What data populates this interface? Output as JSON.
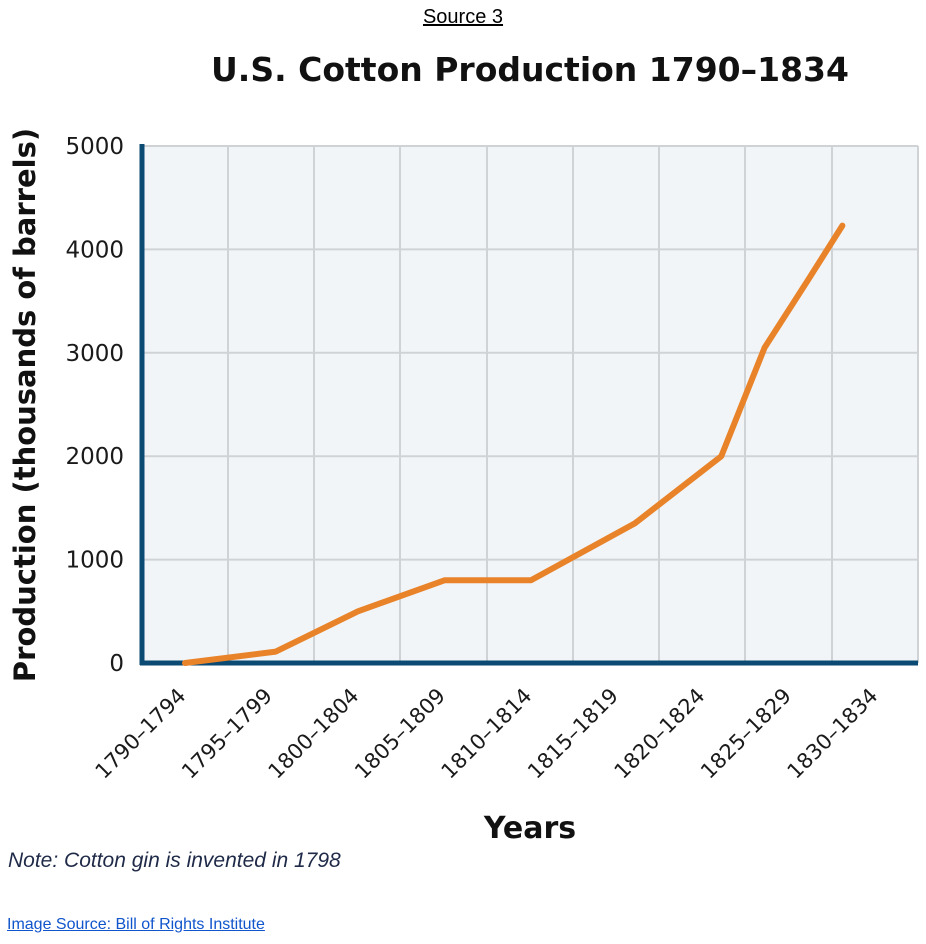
{
  "header": {
    "source_label": "Source 3"
  },
  "chart_data": {
    "type": "line",
    "title": "U.S. Cotton Production 1790–1834",
    "xlabel": "Years",
    "ylabel": "Production (thousands of barrels)",
    "categories": [
      "1790–1794",
      "1795–1799",
      "1800–1804",
      "1805–1809",
      "1810–1814",
      "1815–1819",
      "1820–1824",
      "1825–1829",
      "1830–1834"
    ],
    "y_ticks": [
      0,
      1000,
      2000,
      3000,
      4000,
      5000
    ],
    "ylim": [
      0,
      5000
    ],
    "grid": true,
    "series": [
      {
        "name": "Cotton production",
        "color": "#e8832a",
        "points": [
          {
            "x": 0,
            "y": 0
          },
          {
            "x": 1.05,
            "y": 110
          },
          {
            "x": 2,
            "y": 500
          },
          {
            "x": 3,
            "y": 800
          },
          {
            "x": 4,
            "y": 800
          },
          {
            "x": 5.2,
            "y": 1350
          },
          {
            "x": 6.2,
            "y": 2000
          },
          {
            "x": 6.7,
            "y": 3050
          },
          {
            "x": 7.2,
            "y": 3700
          },
          {
            "x": 7.6,
            "y": 4230
          }
        ]
      }
    ]
  },
  "colors": {
    "axis": "#0b4a72",
    "grid": "#d0d3d6",
    "plot_bg": "#f2f5f8"
  },
  "footer": {
    "note": "Note: Cotton gin is invented in 1798",
    "image_source": "Image Source: Bill of Rights Institute"
  }
}
